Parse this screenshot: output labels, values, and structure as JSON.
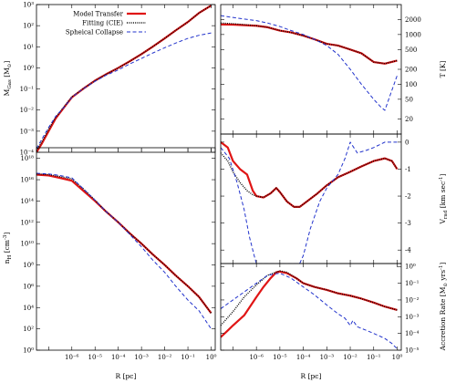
{
  "figure": {
    "legend": {
      "placement": "top-left of upper-left panel",
      "entries": [
        "Model Transfer",
        "Fitting (CIE)",
        "Spheical Collapse"
      ]
    },
    "series_styles": {
      "Model Transfer": {
        "color": "#e01515",
        "dash": "solid"
      },
      "Fitting (CIE)": {
        "color": "#000000",
        "dash": "dotted"
      },
      "Spheical Collapse": {
        "color": "#2233cc",
        "dash": "dashed"
      }
    }
  },
  "chart_data": [
    {
      "id": "mgas",
      "type": "line",
      "ylabel": "M_Gas [M_sun]",
      "ylabel_main": "M",
      "ylabel_sub": "Gas",
      "ylabel_unit": " [M",
      "ylabel_close": "]",
      "xscale": "log",
      "yscale": "log",
      "xlim": [
        3e-08,
        1.5
      ],
      "ylim": [
        0.0001,
        1000.0
      ],
      "y_ticks": [
        {
          "v": 0.0001,
          "label": "10⁻⁴"
        },
        {
          "v": 0.001,
          "label": "10⁻³"
        },
        {
          "v": 0.01,
          "label": "10⁻²"
        },
        {
          "v": 0.1,
          "label": "10⁻¹"
        },
        {
          "v": 1,
          "label": "10⁰"
        },
        {
          "v": 10,
          "label": "10¹"
        },
        {
          "v": 100,
          "label": "10²"
        },
        {
          "v": 1000,
          "label": "10³"
        }
      ],
      "tick_side": "left",
      "series": [
        {
          "name": "Model Transfer",
          "x": [
            3e-08,
            5e-08,
            1e-07,
            2e-07,
            5e-07,
            1e-06,
            3e-06,
            1e-05,
            3e-05,
            0.0001,
            0.0003,
            0.001,
            0.003,
            0.01,
            0.03,
            0.1,
            0.3,
            1.0
          ],
          "y": [
            0.0001,
            0.00025,
            0.001,
            0.004,
            0.015,
            0.04,
            0.1,
            0.25,
            0.5,
            1.0,
            2.0,
            4.5,
            10,
            25,
            60,
            150,
            400,
            900
          ]
        },
        {
          "name": "Fitting (CIE)",
          "x": [
            3e-08,
            5e-08,
            1e-07,
            2e-07,
            5e-07,
            1e-06,
            3e-06,
            1e-05,
            3e-05,
            0.0001,
            0.0003,
            0.001,
            0.003,
            0.01,
            0.03,
            0.1,
            0.3,
            1.0
          ],
          "y": [
            0.00012,
            0.0003,
            0.0012,
            0.0045,
            0.016,
            0.042,
            0.1,
            0.25,
            0.5,
            1.0,
            2.0,
            4.5,
            10,
            25,
            60,
            150,
            400,
            900
          ]
        },
        {
          "name": "Spheical Collapse",
          "x": [
            3e-08,
            5e-08,
            1e-07,
            2e-07,
            5e-07,
            1e-06,
            3e-06,
            1e-05,
            3e-05,
            0.0001,
            0.0003,
            0.001,
            0.003,
            0.01,
            0.03,
            0.1,
            0.3,
            1.0
          ],
          "y": [
            0.00015,
            0.0004,
            0.0015,
            0.005,
            0.015,
            0.04,
            0.1,
            0.23,
            0.45,
            0.8,
            1.5,
            2.8,
            5,
            9,
            15,
            25,
            35,
            45
          ]
        }
      ]
    },
    {
      "id": "temp",
      "type": "line",
      "ylabel": "T [K]",
      "xscale": "log",
      "yscale": "log",
      "xlim": [
        3e-08,
        1.5
      ],
      "ylim": [
        10,
        4000
      ],
      "y_ticks": [
        {
          "v": 20,
          "label": "20"
        },
        {
          "v": 50,
          "label": "50"
        },
        {
          "v": 100,
          "label": "100"
        },
        {
          "v": 200,
          "label": "200"
        },
        {
          "v": 500,
          "label": "500"
        },
        {
          "v": 1000,
          "label": "1000"
        },
        {
          "v": 2000,
          "label": "2000"
        }
      ],
      "tick_side": "right",
      "series": [
        {
          "name": "Model Transfer",
          "x": [
            3e-08,
            1e-07,
            1e-06,
            3e-06,
            1e-05,
            3e-05,
            0.0001,
            0.0003,
            0.001,
            0.003,
            0.01,
            0.03,
            0.1,
            0.3,
            1.0
          ],
          "y": [
            1600,
            1580,
            1500,
            1400,
            1200,
            1100,
            950,
            800,
            650,
            600,
            500,
            420,
            280,
            260,
            300
          ]
        },
        {
          "name": "Fitting (CIE)",
          "x": [
            3e-08,
            1e-07,
            1e-06,
            3e-06,
            1e-05,
            3e-05,
            0.0001,
            0.0003,
            0.001,
            0.003,
            0.01,
            0.03,
            0.1,
            0.3,
            1.0
          ],
          "y": [
            1700,
            1650,
            1500,
            1400,
            1200,
            1100,
            950,
            800,
            650,
            600,
            500,
            420,
            280,
            260,
            300
          ]
        },
        {
          "name": "Spheical Collapse",
          "x": [
            3e-08,
            1e-07,
            1e-06,
            3e-06,
            1e-05,
            3e-05,
            0.0001,
            0.0003,
            0.001,
            0.003,
            0.01,
            0.03,
            0.1,
            0.2,
            0.3,
            0.5,
            1.0
          ],
          "y": [
            2400,
            2200,
            1900,
            1700,
            1450,
            1200,
            1000,
            800,
            600,
            400,
            200,
            100,
            50,
            35,
            30,
            60,
            150
          ]
        }
      ]
    },
    {
      "id": "nh",
      "type": "line",
      "ylabel": "n_H [cm^-3]",
      "ylabel_main": "n",
      "ylabel_sub": "H",
      "ylabel_unit": " [cm",
      "ylabel_sup": "-3",
      "ylabel_close": "]",
      "xscale": "log",
      "yscale": "log",
      "xlim": [
        3e-08,
        1.5
      ],
      "ylim": [
        1,
        1e+19
      ],
      "y_ticks": [
        {
          "v": 1,
          "label": "10⁰"
        },
        {
          "v": 100.0,
          "label": "10²"
        },
        {
          "v": 10000.0,
          "label": "10⁴"
        },
        {
          "v": 1000000.0,
          "label": "10⁶"
        },
        {
          "v": 100000000.0,
          "label": "10⁸"
        },
        {
          "v": 10000000000.0,
          "label": "10¹⁰"
        },
        {
          "v": 1000000000000.0,
          "label": "10¹²"
        },
        {
          "v": 100000000000000.0,
          "label": "10¹⁴"
        },
        {
          "v": 1e+16,
          "label": "10¹⁶"
        },
        {
          "v": 1e+18,
          "label": "10¹⁸"
        }
      ],
      "tick_side": "left",
      "x_ticks": [
        {
          "v": 1e-06,
          "label": "10⁻⁶"
        },
        {
          "v": 1e-05,
          "label": "10⁻⁵"
        },
        {
          "v": 0.0001,
          "label": "10⁻⁴"
        },
        {
          "v": 0.001,
          "label": "10⁻³"
        },
        {
          "v": 0.01,
          "label": "10⁻²"
        },
        {
          "v": 0.1,
          "label": "10⁻¹"
        },
        {
          "v": 1,
          "label": "10⁰"
        }
      ],
      "xlabel": "R [pc]",
      "series": [
        {
          "name": "Model Transfer",
          "x": [
            3e-08,
            1e-07,
            3e-07,
            1e-06,
            3e-06,
            1e-05,
            3e-05,
            0.0001,
            0.0003,
            0.001,
            0.003,
            0.01,
            0.03,
            0.1,
            0.3,
            1.0
          ],
          "y": [
            3e+16,
            2.5e+16,
            1.5e+16,
            8000000000000000.0,
            1000000000000000.0,
            100000000000000.0,
            10000000000000.0,
            1000000000000.0,
            100000000000.0,
            10000000000.0,
            1000000000.0,
            100000000.0,
            10000000.0,
            1000000.0,
            100000.0,
            3000.0
          ]
        },
        {
          "name": "Fitting (CIE)",
          "x": [
            3e-08,
            1e-07,
            3e-07,
            1e-06,
            3e-06,
            1e-05,
            3e-05,
            0.0001,
            0.0003,
            0.001,
            0.003,
            0.01,
            0.03,
            0.1,
            0.3,
            1.0
          ],
          "y": [
            3.5e+16,
            3e+16,
            2e+16,
            1.2e+16,
            1500000000000000.0,
            120000000000000.0,
            10000000000000.0,
            1000000000000.0,
            100000000000.0,
            10000000000.0,
            1000000000.0,
            100000000.0,
            10000000.0,
            1000000.0,
            100000.0,
            3000.0
          ]
        },
        {
          "name": "Spheical Collapse",
          "x": [
            3e-08,
            1e-07,
            3e-07,
            1e-06,
            3e-06,
            1e-05,
            3e-05,
            0.0001,
            0.0003,
            0.001,
            0.003,
            0.01,
            0.03,
            0.1,
            0.3,
            1.0
          ],
          "y": [
            4e+16,
            3.5e+16,
            2.5e+16,
            1.5e+16,
            1500000000000000.0,
            120000000000000.0,
            10000000000000.0,
            1000000000000.0,
            80000000000.0,
            5000000000.0,
            300000000.0,
            20000000.0,
            1000000.0,
            50000.0,
            5000.0,
            100
          ]
        }
      ]
    },
    {
      "id": "vrad",
      "type": "line",
      "ylabel": "V_rad [km sec^-1]",
      "ylabel_main": "V",
      "ylabel_sub": "rad",
      "ylabel_unit": " [km sec",
      "ylabel_sup": "-1",
      "ylabel_close": "]",
      "xscale": "log",
      "yscale": "linear",
      "xlim": [
        3e-08,
        1.5
      ],
      "ylim": [
        -4.5,
        0.3
      ],
      "y_ticks": [
        {
          "v": 0,
          "label": "0"
        },
        {
          "v": -1,
          "label": "-1"
        },
        {
          "v": -2,
          "label": "-2"
        },
        {
          "v": -3,
          "label": "-3"
        },
        {
          "v": -4,
          "label": "-4"
        }
      ],
      "tick_side": "right",
      "series": [
        {
          "name": "Model Transfer",
          "x": [
            3e-08,
            6e-08,
            1e-07,
            2e-07,
            4e-07,
            7e-07,
            1e-06,
            2e-06,
            4e-06,
            7e-06,
            1e-05,
            2e-05,
            4e-05,
            7e-05,
            0.0001,
            0.0002,
            0.0004,
            0.001,
            0.003,
            0.01,
            0.03,
            0.1,
            0.3,
            0.6,
            1.0
          ],
          "y": [
            0.0,
            -0.2,
            -0.7,
            -1.0,
            -1.2,
            -1.8,
            -2.0,
            -2.05,
            -1.9,
            -1.7,
            -1.85,
            -2.2,
            -2.4,
            -2.4,
            -2.3,
            -2.1,
            -1.9,
            -1.6,
            -1.3,
            -1.1,
            -0.9,
            -0.7,
            -0.6,
            -0.7,
            -1.0
          ]
        },
        {
          "name": "Fitting (CIE)",
          "x": [
            3e-08,
            6e-08,
            1e-07,
            2e-07,
            4e-07,
            7e-07,
            1e-06,
            2e-06,
            4e-06,
            7e-06,
            1e-05,
            2e-05,
            4e-05,
            7e-05,
            0.0001,
            0.0002,
            0.0004,
            0.001,
            0.003,
            0.01,
            0.03,
            0.1,
            0.3,
            0.6,
            1.0
          ],
          "y": [
            -0.4,
            -0.7,
            -1.1,
            -1.5,
            -1.8,
            -1.95,
            -2.0,
            -2.05,
            -1.9,
            -1.7,
            -1.85,
            -2.2,
            -2.4,
            -2.4,
            -2.3,
            -2.1,
            -1.9,
            -1.6,
            -1.3,
            -1.1,
            -0.9,
            -0.7,
            -0.6,
            -0.7,
            -1.0
          ]
        },
        {
          "name": "Spheical Collapse",
          "x": [
            3e-08,
            7e-08,
            1.5e-07,
            3e-07,
            5e-07,
            8e-07,
            1e-06,
            1.3e-06,
            7e-05,
            0.0001,
            0.0002,
            0.0005,
            0.001,
            0.003,
            0.006,
            0.01,
            0.02,
            0.05,
            0.1,
            0.3,
            1.0
          ],
          "y": [
            -0.2,
            -0.6,
            -1.5,
            -2.5,
            -3.5,
            -4.2,
            -4.5,
            -4.5,
            -4.5,
            -4.2,
            -3.2,
            -2.2,
            -1.7,
            -1.2,
            -0.6,
            0.0,
            -0.4,
            -0.3,
            -0.2,
            0.0,
            0.0
          ]
        }
      ]
    },
    {
      "id": "accretion",
      "type": "line",
      "ylabel": "Accretion Rate [M_sun yrs^-1]",
      "ylabel_main": "Accretion Rate [M",
      "ylabel_unit": " yrs",
      "ylabel_sup": "-1",
      "ylabel_close": "]",
      "xscale": "log",
      "yscale": "log",
      "xlim": [
        3e-08,
        1.5
      ],
      "ylim": [
        1e-05,
        1.5
      ],
      "y_ticks": [
        {
          "v": 1e-05,
          "label": "10⁻⁵"
        },
        {
          "v": 0.0001,
          "label": "10⁻⁴"
        },
        {
          "v": 0.001,
          "label": "10⁻³"
        },
        {
          "v": 0.01,
          "label": "10⁻²"
        },
        {
          "v": 0.1,
          "label": "10⁻¹"
        },
        {
          "v": 1,
          "label": "10⁰"
        }
      ],
      "tick_side": "right",
      "x_ticks": [
        {
          "v": 1e-06,
          "label": "10⁻⁶"
        },
        {
          "v": 1e-05,
          "label": "10⁻⁵"
        },
        {
          "v": 0.0001,
          "label": "10⁻⁴"
        },
        {
          "v": 0.001,
          "label": "10⁻³"
        },
        {
          "v": 0.01,
          "label": "10⁻²"
        },
        {
          "v": 0.1,
          "label": "10⁻¹"
        },
        {
          "v": 1,
          "label": "10⁰"
        }
      ],
      "xlabel": "R [pc]",
      "series": [
        {
          "name": "Model Transfer",
          "x": [
            3e-08,
            6e-08,
            1e-07,
            3e-07,
            1e-06,
            2e-06,
            4e-06,
            7e-06,
            1e-05,
            2e-05,
            5e-05,
            0.0001,
            0.0003,
            0.001,
            0.003,
            0.01,
            0.03,
            0.1,
            0.3,
            1.0
          ],
          "y": [
            6e-05,
            0.00015,
            0.0003,
            0.0012,
            0.015,
            0.06,
            0.2,
            0.45,
            0.5,
            0.4,
            0.2,
            0.1,
            0.06,
            0.04,
            0.025,
            0.018,
            0.012,
            0.007,
            0.004,
            0.0025
          ]
        },
        {
          "name": "Fitting (CIE)",
          "x": [
            3e-08,
            1e-07,
            3e-07,
            1e-06,
            3e-06,
            1e-05,
            2e-05,
            5e-05,
            0.0001,
            0.0003,
            0.001,
            0.003,
            0.01,
            0.03,
            0.1,
            0.3,
            1.0
          ],
          "y": [
            0.0003,
            0.002,
            0.015,
            0.08,
            0.3,
            0.55,
            0.45,
            0.2,
            0.1,
            0.06,
            0.04,
            0.025,
            0.018,
            0.012,
            0.007,
            0.004,
            0.0025
          ]
        },
        {
          "name": "Spheical Collapse",
          "x": [
            3e-08,
            1e-07,
            3e-07,
            1e-06,
            3e-06,
            1e-05,
            3e-05,
            0.0001,
            0.0003,
            0.001,
            0.003,
            0.006,
            0.01,
            0.013,
            0.02,
            0.05,
            0.1,
            0.3,
            0.6,
            1.0
          ],
          "y": [
            0.003,
            0.01,
            0.03,
            0.1,
            0.3,
            0.4,
            0.2,
            0.06,
            0.02,
            0.005,
            0.0015,
            0.0008,
            0.0003,
            0.0006,
            0.00025,
            0.00015,
            0.0001,
            5e-05,
            2.5e-05,
            1.2e-05
          ]
        }
      ]
    }
  ]
}
